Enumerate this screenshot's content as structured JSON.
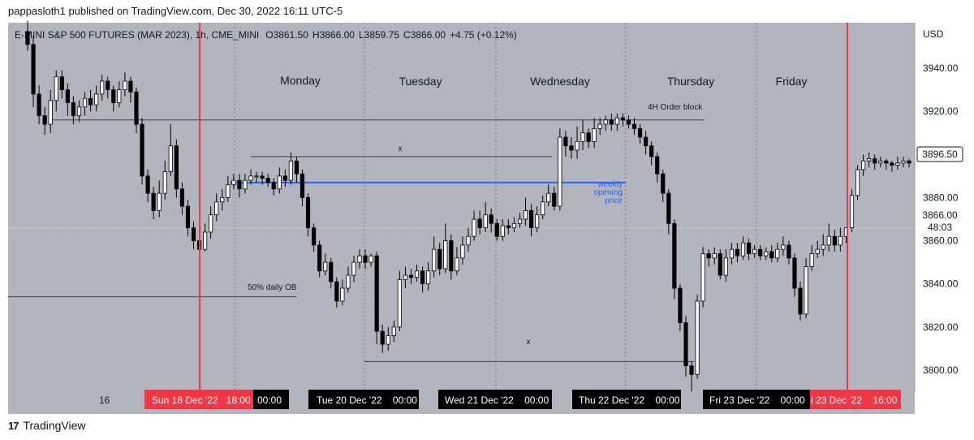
{
  "header": {
    "published": "pappasloth1 published on TradingView.com, Dec 30, 2022 16:11 UTC-5"
  },
  "chart_info": {
    "title": "E-MINI S&P 500 FUTURES (MAR 2023), 1h, CME_MINI",
    "open": "O3861.50",
    "high": "H3866.00",
    "low": "L3859.75",
    "close": "C3866.00",
    "change": "+4.75 (+0.12%)"
  },
  "currency": "USD",
  "colors": {
    "plot_bg": "#b2b5be",
    "up": "#ffffff",
    "down": "#000000",
    "red_line": "#f23645",
    "weekly_line": "#2962ff"
  },
  "day_labels": [
    "Monday",
    "Tuesday",
    "Wednesday",
    "Thursday",
    "Friday"
  ],
  "annotations": {
    "order_block": "4H Order block",
    "daily_ob": "50% daily OB",
    "weekly": [
      "weekly",
      "opening",
      "price"
    ],
    "x_mark": "x"
  },
  "price_badges": {
    "last": "3896.50",
    "current": "3866.00",
    "countdown": "48:03"
  },
  "time_labels": {
    "left": "16",
    "sun": "Sun 18 Dec '22   18:00",
    "sun_after": "00:00",
    "tue": "Tue 20 Dec '22    00:00",
    "wed": "Wed 21 Dec '22    00:00",
    "thu": "Thu 22 Dec '22    00:00",
    "fri": "Fri 23 Dec '22    00:00",
    "fri_red": "i 23 Dec '22    16:00"
  },
  "footer": {
    "brand": "TradingView"
  },
  "chart_data": {
    "type": "candlestick",
    "title": "E-MINI S&P 500 FUTURES (MAR 2023), 1h, CME_MINI",
    "yaxis_unit": "USD",
    "ylim": [
      3788,
      3962
    ],
    "yticks": [
      3940,
      3920,
      3900,
      3880,
      3860,
      3840,
      3820,
      3800
    ],
    "levels": {
      "order_block_4h": 3916,
      "weekly_opening_price": 3887,
      "daily_ob_50pct": 3834,
      "x_line_upper": 3899,
      "x_line_lower": 3804
    },
    "candles": [
      [
        3957,
        3951,
        3962,
        3948
      ],
      [
        3951,
        3928,
        3955,
        3922
      ],
      [
        3928,
        3918,
        3932,
        3914
      ],
      [
        3918,
        3914,
        3922,
        3909
      ],
      [
        3914,
        3925,
        3930,
        3910
      ],
      [
        3925,
        3936,
        3939,
        3920
      ],
      [
        3936,
        3930,
        3939,
        3926
      ],
      [
        3930,
        3924,
        3933,
        3918
      ],
      [
        3924,
        3918,
        3927,
        3914
      ],
      [
        3918,
        3922,
        3925,
        3915
      ],
      [
        3922,
        3926,
        3929,
        3918
      ],
      [
        3926,
        3923,
        3930,
        3920
      ],
      [
        3923,
        3928,
        3932,
        3920
      ],
      [
        3928,
        3934,
        3937,
        3925
      ],
      [
        3934,
        3930,
        3936,
        3926
      ],
      [
        3930,
        3924,
        3932,
        3920
      ],
      [
        3924,
        3930,
        3934,
        3922
      ],
      [
        3930,
        3934,
        3938,
        3927
      ],
      [
        3934,
        3929,
        3936,
        3924
      ],
      [
        3929,
        3914,
        3931,
        3910
      ],
      [
        3914,
        3890,
        3917,
        3886
      ],
      [
        3890,
        3882,
        3893,
        3878
      ],
      [
        3882,
        3874,
        3885,
        3870
      ],
      [
        3874,
        3882,
        3888,
        3871
      ],
      [
        3882,
        3892,
        3897,
        3879
      ],
      [
        3892,
        3904,
        3914,
        3890
      ],
      [
        3904,
        3884,
        3907,
        3880
      ],
      [
        3884,
        3876,
        3887,
        3872
      ],
      [
        3876,
        3866,
        3879,
        3862
      ],
      [
        3866,
        3860,
        3869,
        3856
      ],
      [
        3860,
        3856,
        3864,
        3855
      ],
      [
        3856,
        3864,
        3868,
        3855
      ],
      [
        3864,
        3872,
        3876,
        3861
      ],
      [
        3872,
        3878,
        3882,
        3869
      ],
      [
        3878,
        3880,
        3884,
        3874
      ],
      [
        3880,
        3886,
        3890,
        3878
      ],
      [
        3886,
        3888,
        3891,
        3884
      ],
      [
        3888,
        3884,
        3891,
        3880
      ],
      [
        3884,
        3888,
        3891,
        3882
      ],
      [
        3888,
        3890,
        3893,
        3886
      ],
      [
        3890,
        3890,
        3892,
        3887
      ],
      [
        3890,
        3889,
        3892,
        3886
      ],
      [
        3889,
        3887,
        3891,
        3885
      ],
      [
        3887,
        3884,
        3889,
        3881
      ],
      [
        3884,
        3890,
        3894,
        3882
      ],
      [
        3890,
        3888,
        3893,
        3885
      ],
      [
        3888,
        3897,
        3901,
        3886
      ],
      [
        3897,
        3891,
        3899,
        3887
      ],
      [
        3891,
        3880,
        3893,
        3876
      ],
      [
        3880,
        3866,
        3882,
        3862
      ],
      [
        3866,
        3858,
        3868,
        3855
      ],
      [
        3858,
        3846,
        3860,
        3843
      ],
      [
        3846,
        3850,
        3854,
        3844
      ],
      [
        3850,
        3841,
        3852,
        3838
      ],
      [
        3841,
        3832,
        3843,
        3829
      ],
      [
        3832,
        3838,
        3842,
        3830
      ],
      [
        3838,
        3844,
        3848,
        3836
      ],
      [
        3844,
        3850,
        3853,
        3841
      ],
      [
        3850,
        3853,
        3856,
        3847
      ],
      [
        3853,
        3850,
        3856,
        3847
      ],
      [
        3850,
        3853,
        3854,
        3848
      ],
      [
        3853,
        3818,
        3855,
        3812
      ],
      [
        3818,
        3812,
        3821,
        3808
      ],
      [
        3812,
        3816,
        3820,
        3809
      ],
      [
        3816,
        3820,
        3823,
        3813
      ],
      [
        3820,
        3842,
        3846,
        3818
      ],
      [
        3842,
        3844,
        3848,
        3838
      ],
      [
        3844,
        3843,
        3847,
        3840
      ],
      [
        3843,
        3846,
        3849,
        3841
      ],
      [
        3846,
        3840,
        3848,
        3836
      ],
      [
        3840,
        3846,
        3850,
        3837
      ],
      [
        3846,
        3856,
        3862,
        3843
      ],
      [
        3856,
        3847,
        3859,
        3844
      ],
      [
        3847,
        3860,
        3868,
        3845
      ],
      [
        3860,
        3846,
        3863,
        3842
      ],
      [
        3846,
        3852,
        3857,
        3844
      ],
      [
        3852,
        3858,
        3862,
        3849
      ],
      [
        3858,
        3862,
        3866,
        3855
      ],
      [
        3862,
        3870,
        3874,
        3860
      ],
      [
        3870,
        3866,
        3874,
        3863
      ],
      [
        3866,
        3872,
        3878,
        3864
      ],
      [
        3872,
        3868,
        3875,
        3864
      ],
      [
        3868,
        3862,
        3870,
        3860
      ],
      [
        3862,
        3867,
        3870,
        3860
      ],
      [
        3867,
        3866,
        3870,
        3863
      ],
      [
        3866,
        3868,
        3871,
        3864
      ],
      [
        3868,
        3870,
        3873,
        3866
      ],
      [
        3870,
        3874,
        3880,
        3867
      ],
      [
        3874,
        3866,
        3877,
        3862
      ],
      [
        3866,
        3872,
        3876,
        3864
      ],
      [
        3872,
        3878,
        3881,
        3870
      ],
      [
        3878,
        3882,
        3886,
        3876
      ],
      [
        3882,
        3876,
        3885,
        3874
      ],
      [
        3876,
        3908,
        3912,
        3874
      ],
      [
        3908,
        3904,
        3911,
        3899
      ],
      [
        3904,
        3902,
        3908,
        3898
      ],
      [
        3902,
        3906,
        3913,
        3898
      ],
      [
        3906,
        3910,
        3916,
        3902
      ],
      [
        3910,
        3906,
        3912,
        3903
      ],
      [
        3906,
        3912,
        3917,
        3903
      ],
      [
        3912,
        3914,
        3917,
        3909
      ],
      [
        3914,
        3916,
        3918,
        3911
      ],
      [
        3916,
        3914,
        3919,
        3911
      ],
      [
        3914,
        3917,
        3919,
        3911
      ],
      [
        3917,
        3916,
        3919,
        3913
      ],
      [
        3916,
        3914,
        3918,
        3912
      ],
      [
        3914,
        3912,
        3917,
        3909
      ],
      [
        3912,
        3908,
        3914,
        3905
      ],
      [
        3908,
        3904,
        3911,
        3900
      ],
      [
        3904,
        3899,
        3906,
        3895
      ],
      [
        3899,
        3891,
        3901,
        3887
      ],
      [
        3891,
        3882,
        3893,
        3878
      ],
      [
        3882,
        3868,
        3884,
        3863
      ],
      [
        3868,
        3838,
        3870,
        3833
      ],
      [
        3838,
        3822,
        3840,
        3818
      ],
      [
        3822,
        3802,
        3825,
        3797
      ],
      [
        3802,
        3798,
        3804,
        3790
      ],
      [
        3798,
        3832,
        3835,
        3796
      ],
      [
        3832,
        3854,
        3857,
        3829
      ],
      [
        3854,
        3852,
        3856,
        3848
      ],
      [
        3852,
        3854,
        3857,
        3849
      ],
      [
        3854,
        3844,
        3856,
        3842
      ],
      [
        3844,
        3852,
        3856,
        3841
      ],
      [
        3852,
        3856,
        3859,
        3849
      ],
      [
        3856,
        3853,
        3859,
        3850
      ],
      [
        3853,
        3859,
        3862,
        3851
      ],
      [
        3859,
        3854,
        3861,
        3851
      ],
      [
        3854,
        3856,
        3858,
        3852
      ],
      [
        3856,
        3853,
        3858,
        3851
      ],
      [
        3853,
        3855,
        3857,
        3851
      ],
      [
        3855,
        3852,
        3858,
        3850
      ],
      [
        3852,
        3856,
        3859,
        3850
      ],
      [
        3856,
        3858,
        3862,
        3853
      ],
      [
        3858,
        3852,
        3860,
        3849
      ],
      [
        3852,
        3838,
        3854,
        3834
      ],
      [
        3838,
        3826,
        3841,
        3823
      ],
      [
        3826,
        3848,
        3852,
        3824
      ],
      [
        3848,
        3854,
        3858,
        3846
      ],
      [
        3854,
        3856,
        3860,
        3852
      ],
      [
        3856,
        3858,
        3863,
        3853
      ],
      [
        3858,
        3862,
        3868,
        3855
      ],
      [
        3862,
        3858,
        3865,
        3855
      ],
      [
        3858,
        3862,
        3866,
        3855
      ],
      [
        3862,
        3866,
        3866,
        3859
      ],
      [
        3866,
        3881,
        3884,
        3864
      ],
      [
        3881,
        3893,
        3895,
        3879
      ],
      [
        3893,
        3897,
        3900,
        3890
      ],
      [
        3897,
        3898,
        3901,
        3894
      ],
      [
        3898,
        3896,
        3900,
        3893
      ],
      [
        3896,
        3897,
        3899,
        3894
      ],
      [
        3897,
        3896,
        3898,
        3893
      ],
      [
        3896,
        3895,
        3897,
        3892
      ],
      [
        3895,
        3896,
        3899,
        3893
      ],
      [
        3896,
        3897,
        3899,
        3894
      ],
      [
        3897,
        3896,
        3898,
        3894
      ]
    ]
  }
}
